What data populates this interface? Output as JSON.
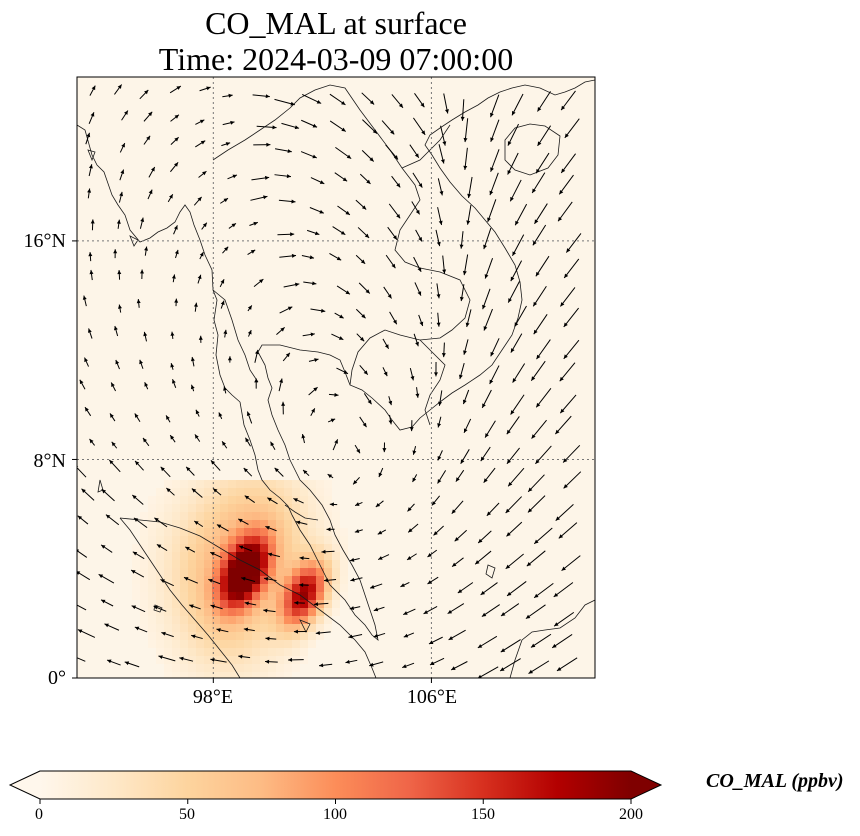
{
  "title": {
    "line1": "CO_MAL at surface",
    "line2": "Time: 2024-03-09 07:00:00"
  },
  "map": {
    "lon_range": [
      93,
      112
    ],
    "lat_range": [
      0,
      22
    ],
    "lat_ticks": [
      {
        "value": 16,
        "label": "16°N"
      },
      {
        "value": 8,
        "label": "8°N"
      },
      {
        "value": 0,
        "label": "0°"
      }
    ],
    "lon_ticks": [
      {
        "value": 98,
        "label": "98°E"
      },
      {
        "value": 106,
        "label": "106°E"
      }
    ],
    "colors": {
      "background": "#fdf5e8",
      "coast": "#1a1a1a",
      "grid": "#777777",
      "arrow": "#000000"
    }
  },
  "colorbar": {
    "label": "CO_MAL (ppbv)",
    "min": 0,
    "max": 200,
    "ticks": [
      "0",
      "50",
      "100",
      "150",
      "200"
    ],
    "colormap": "OrRd",
    "stops": [
      "#fff7ec",
      "#fee8c8",
      "#fdd49e",
      "#fdbb84",
      "#fc8d59",
      "#ef6548",
      "#d7301f",
      "#b30000",
      "#7f0000"
    ]
  },
  "chart_data": {
    "type": "heatmap",
    "variable": "CO_MAL",
    "units": "ppbv",
    "plumes": [
      {
        "lon": 99.0,
        "lat": 4.0,
        "peak": 200
      },
      {
        "lon": 101.2,
        "lat": 3.2,
        "peak": 170
      },
      {
        "lon": 99.5,
        "lat": 5.4,
        "peak": 60
      },
      {
        "lon": 98.4,
        "lat": 2.5,
        "peak": 45
      },
      {
        "lon": 97.5,
        "lat": 4.6,
        "peak": 25
      }
    ]
  }
}
